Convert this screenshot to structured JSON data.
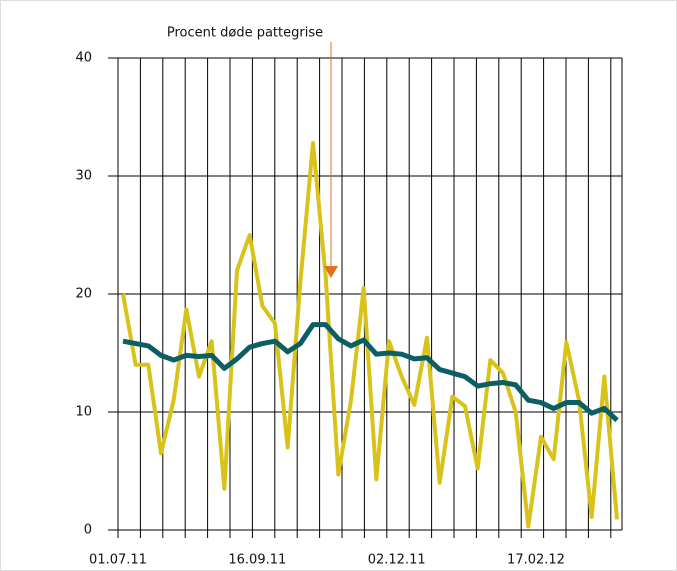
{
  "chart_data": {
    "type": "line",
    "annotation": "Procent døde pattegrise",
    "categories": [
      "01.07.11",
      null,
      null,
      null,
      null,
      null,
      null,
      null,
      null,
      null,
      null,
      "16.09.11",
      null,
      null,
      null,
      null,
      null,
      null,
      null,
      null,
      null,
      null,
      "02.12.11",
      null,
      null,
      null,
      null,
      null,
      null,
      null,
      null,
      null,
      null,
      "17.02.12",
      null,
      null,
      null,
      null,
      null,
      null
    ],
    "series": [
      {
        "color": "#d9c21a",
        "values": [
          20,
          14,
          14,
          6.5,
          11,
          18.7,
          13,
          16,
          3.5,
          22,
          25,
          19,
          17.5,
          7,
          21,
          32.8,
          21.5,
          4.7,
          11,
          20.5,
          4.3,
          16,
          13,
          10.6,
          16.3,
          4,
          11.3,
          10.5,
          5.2,
          14.4,
          13.3,
          10,
          0.3,
          7.9,
          6,
          15.9,
          11,
          1.1,
          13,
          0.9
        ]
      },
      {
        "color": "#0b5e63",
        "values": [
          16,
          15.8,
          15.6,
          14.8,
          14.4,
          14.8,
          14.7,
          14.8,
          13.7,
          14.5,
          15.5,
          15.8,
          16,
          15.1,
          15.8,
          17.4,
          17.4,
          16.2,
          15.6,
          16.1,
          14.9,
          15,
          14.9,
          14.5,
          14.6,
          13.6,
          13.3,
          13,
          12.2,
          12.4,
          12.5,
          12.3,
          11,
          10.8,
          10.3,
          10.8,
          10.8,
          9.9,
          10.3,
          9.3
        ]
      }
    ],
    "ylim": [
      0,
      40
    ],
    "yticks": [
      0,
      10,
      20,
      30,
      40
    ],
    "grid": true
  }
}
